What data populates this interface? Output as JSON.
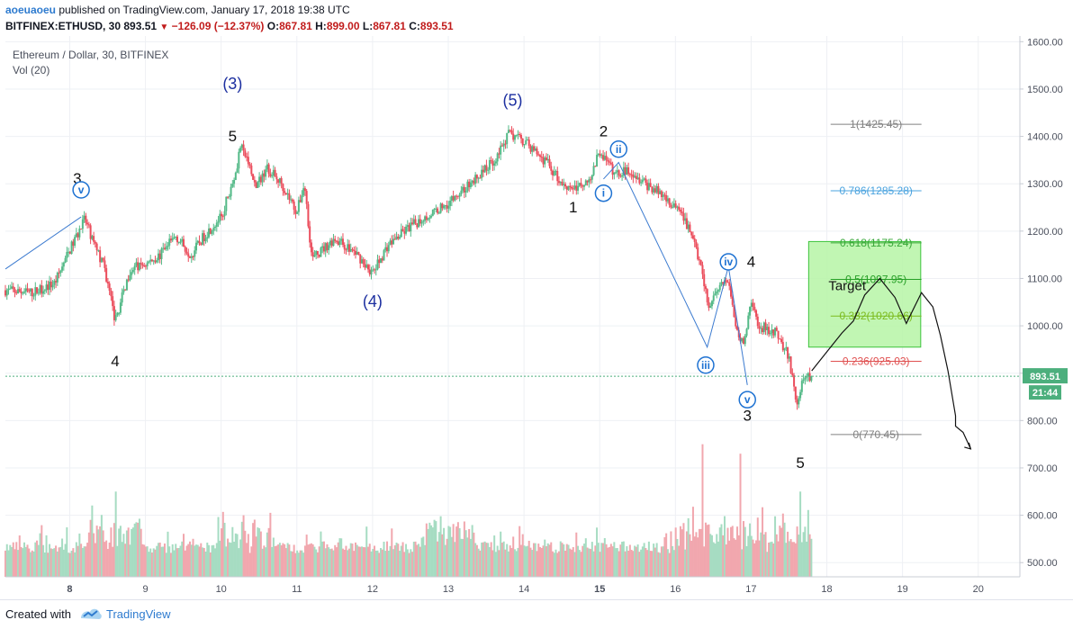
{
  "header": {
    "author": "aoeuaoeu",
    "published": "published on TradingView.com, January 17, 2018 19:38 UTC",
    "symbol": "BITFINEX:ETHUSD, 30",
    "last": "893.51",
    "change": "−126.09 (−12.37%)",
    "o_label": "O:",
    "o": "867.81",
    "h_label": "H:",
    "h": "899.00",
    "l_label": "L:",
    "l": "867.81",
    "c_label": "C:",
    "c": "893.51"
  },
  "footer": {
    "created_with": "Created with",
    "brand": "TradingView"
  },
  "colors": {
    "up": "#53b987",
    "down": "#eb4d5c",
    "wave_primary": "#1c2fa0",
    "wave_minor": "#1e72d2",
    "target_fill": "#b6f5a6",
    "target_border": "#3cc33c"
  },
  "chart_data": {
    "type": "candlestick",
    "title": "Ethereum / Dollar, 30, BITFINEX",
    "volume_label": "Vol (20)",
    "y_ticks": [
      "1600.00",
      "1500.00",
      "1400.00",
      "1300.00",
      "1200.00",
      "1100.00",
      "1000.00",
      "900.00",
      "800.00",
      "700.00",
      "600.00",
      "500.00"
    ],
    "y_tick_values": [
      1600,
      1500,
      1400,
      1300,
      1200,
      1100,
      1000,
      900,
      800,
      700,
      600,
      500
    ],
    "ylim": [
      470,
      1612
    ],
    "x_ticks": [
      "8",
      "9",
      "10",
      "11",
      "12",
      "13",
      "14",
      "15",
      "16",
      "17",
      "18",
      "19",
      "20"
    ],
    "x_tick_values": [
      8,
      9,
      10,
      11,
      12,
      13,
      14,
      15,
      16,
      17,
      18,
      19,
      20
    ],
    "bold_x_ticks": [
      "8",
      "15"
    ],
    "xlim": [
      7.15,
      20.55
    ],
    "price_path": [
      [
        7.15,
        1075
      ],
      [
        7.5,
        1070
      ],
      [
        7.8,
        1090
      ],
      [
        8.0,
        1160
      ],
      [
        8.2,
        1225
      ],
      [
        8.35,
        1160
      ],
      [
        8.45,
        1130
      ],
      [
        8.6,
        1010
      ],
      [
        8.8,
        1120
      ],
      [
        9.0,
        1130
      ],
      [
        9.2,
        1150
      ],
      [
        9.4,
        1190
      ],
      [
        9.6,
        1150
      ],
      [
        9.8,
        1195
      ],
      [
        10.0,
        1230
      ],
      [
        10.1,
        1280
      ],
      [
        10.2,
        1330
      ],
      [
        10.25,
        1380
      ],
      [
        10.35,
        1350
      ],
      [
        10.45,
        1290
      ],
      [
        10.6,
        1335
      ],
      [
        10.8,
        1300
      ],
      [
        10.9,
        1270
      ],
      [
        11.0,
        1240
      ],
      [
        11.1,
        1300
      ],
      [
        11.2,
        1140
      ],
      [
        11.5,
        1185
      ],
      [
        11.8,
        1150
      ],
      [
        12.0,
        1110
      ],
      [
        12.2,
        1170
      ],
      [
        12.5,
        1210
      ],
      [
        12.8,
        1240
      ],
      [
        13.0,
        1260
      ],
      [
        13.3,
        1300
      ],
      [
        13.6,
        1350
      ],
      [
        13.8,
        1405
      ],
      [
        14.0,
        1390
      ],
      [
        14.3,
        1345
      ],
      [
        14.5,
        1300
      ],
      [
        14.7,
        1290
      ],
      [
        14.9,
        1320
      ],
      [
        15.0,
        1370
      ],
      [
        15.2,
        1320
      ],
      [
        15.4,
        1330
      ],
      [
        15.6,
        1300
      ],
      [
        15.8,
        1280
      ],
      [
        16.0,
        1250
      ],
      [
        16.2,
        1200
      ],
      [
        16.35,
        1110
      ],
      [
        16.45,
        1030
      ],
      [
        16.6,
        1100
      ],
      [
        16.7,
        1090
      ],
      [
        16.8,
        1000
      ],
      [
        16.9,
        960
      ],
      [
        17.0,
        1050
      ],
      [
        17.1,
        1000
      ],
      [
        17.3,
        990
      ],
      [
        17.5,
        935
      ],
      [
        17.6,
        830
      ],
      [
        17.7,
        900
      ],
      [
        17.8,
        893
      ]
    ],
    "volume_spikes": [
      [
        8.6,
        650
      ],
      [
        10.3,
        600
      ],
      [
        13.0,
        550
      ],
      [
        16.35,
        750
      ],
      [
        16.85,
        730
      ],
      [
        17.65,
        650
      ]
    ],
    "volume_baseline": 520,
    "last_price": {
      "label": "893.51",
      "value": 893.51
    },
    "countdown": "21:44",
    "fib_levels": [
      {
        "label": "1(1425.45)",
        "value": 1425.45,
        "color": "#808080"
      },
      {
        "label": "0.786(1285.28)",
        "value": 1285.28,
        "color": "#4aa3df"
      },
      {
        "label": "0.618(1175.24)",
        "value": 1175.24,
        "color": "#38a838"
      },
      {
        "label": "0.5(1097.95)",
        "value": 1097.95,
        "color": "#27a027"
      },
      {
        "label": "0.382(1020.66)",
        "value": 1020.66,
        "color": "#7cbb1e"
      },
      {
        "label": "0.236(925.03)",
        "value": 925.03,
        "color": "#e05050"
      },
      {
        "label": "0(770.45)",
        "value": 770.45,
        "color": "#808080"
      }
    ],
    "fib_x_range": [
      18.05,
      19.25
    ],
    "target_zone": {
      "label": "Target",
      "x0": 17.76,
      "x1": 19.24,
      "y0": 955,
      "y1": 1178
    },
    "primary_waves": [
      {
        "label": "(3)",
        "x": 10.15,
        "y": 1500
      },
      {
        "label": "(4)",
        "x": 12.0,
        "y": 1040
      },
      {
        "label": "(5)",
        "x": 13.85,
        "y": 1465
      }
    ],
    "black_labels": [
      {
        "label": "3",
        "x": 8.1,
        "y": 1300
      },
      {
        "label": "4",
        "x": 8.6,
        "y": 915
      },
      {
        "label": "5",
        "x": 10.15,
        "y": 1390
      },
      {
        "label": "1",
        "x": 14.65,
        "y": 1240
      },
      {
        "label": "2",
        "x": 15.05,
        "y": 1400
      },
      {
        "label": "4",
        "x": 17.0,
        "y": 1125
      },
      {
        "label": "3",
        "x": 16.95,
        "y": 800
      },
      {
        "label": "5",
        "x": 17.65,
        "y": 700
      }
    ],
    "circle_labels": [
      {
        "label": "v",
        "x": 8.15,
        "y": 1287
      },
      {
        "label": "i",
        "x": 15.05,
        "y": 1280
      },
      {
        "label": "ii",
        "x": 15.25,
        "y": 1373
      },
      {
        "label": "iii",
        "x": 16.4,
        "y": 917
      },
      {
        "label": "iv",
        "x": 16.7,
        "y": 1135
      },
      {
        "label": "v",
        "x": 16.95,
        "y": 844
      }
    ],
    "wave_lines": [
      [
        [
          7.15,
          1120
        ],
        [
          8.15,
          1230
        ]
      ],
      [
        [
          15.05,
          1310
        ],
        [
          15.25,
          1345
        ],
        [
          16.42,
          955
        ],
        [
          16.7,
          1125
        ],
        [
          16.95,
          875
        ]
      ]
    ],
    "projection_path": [
      [
        17.8,
        905
      ],
      [
        18.0,
        945
      ],
      [
        18.2,
        985
      ],
      [
        18.35,
        1010
      ],
      [
        18.5,
        1065
      ],
      [
        18.7,
        1100
      ],
      [
        18.9,
        1060
      ],
      [
        19.05,
        1005
      ],
      [
        19.25,
        1070
      ],
      [
        19.4,
        1040
      ],
      [
        19.5,
        980
      ],
      [
        19.6,
        905
      ],
      [
        19.7,
        810
      ],
      [
        19.7,
        788
      ],
      [
        19.8,
        775
      ],
      [
        19.9,
        740
      ]
    ]
  }
}
